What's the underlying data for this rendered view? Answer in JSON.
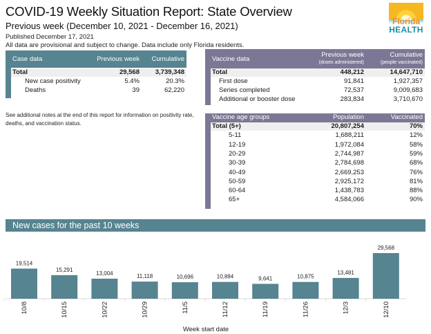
{
  "header": {
    "title": "COVID-19 Weekly Situation Report: State Overview",
    "subtitle": "Previous week (December 10, 2021 - December 16, 2021)",
    "published": "Published December 17, 2021",
    "disclaimer": "All data are provisional and subject to change. Data include only Florida residents."
  },
  "logo": {
    "line1": "Florida",
    "line2": "HEALTH"
  },
  "case_table": {
    "headers": [
      "Case data",
      "Previous week",
      "Cumulative"
    ],
    "rows": [
      {
        "label": "Total",
        "week": "29,568",
        "cumulative": "3,739,348"
      },
      {
        "label": "New case positivity",
        "week": "5.4%",
        "cumulative": "20.3%"
      },
      {
        "label": "Deaths",
        "week": "39",
        "cumulative": "62,220"
      }
    ]
  },
  "note": "See additional notes at the end of this report for information on positivity rate, deaths, and vaccination status.",
  "vaccine_table": {
    "headers": [
      "Vaccine data",
      "Previous week",
      "Cumulative"
    ],
    "subheaders": [
      "(doses administered)",
      "(people vaccinated)"
    ],
    "rows": [
      {
        "label": "Total",
        "week": "448,212",
        "cumulative": "14,647,710"
      },
      {
        "label": "First dose",
        "week": "91,841",
        "cumulative": "1,927,357"
      },
      {
        "label": "Series completed",
        "week": "72,537",
        "cumulative": "9,009,683"
      },
      {
        "label": "Additional or booster dose",
        "week": "283,834",
        "cumulative": "3,710,670"
      }
    ]
  },
  "age_table": {
    "headers": [
      "Vaccine age groups",
      "Population",
      "Vaccinated"
    ],
    "rows": [
      {
        "label": "Total (5+)",
        "population": "20,807,254",
        "vaccinated": "70%"
      },
      {
        "label": "5-11",
        "population": "1,688,211",
        "vaccinated": "12%"
      },
      {
        "label": "12-19",
        "population": "1,972,084",
        "vaccinated": "58%"
      },
      {
        "label": "20-29",
        "population": "2,744,987",
        "vaccinated": "59%"
      },
      {
        "label": "30-39",
        "population": "2,784,698",
        "vaccinated": "68%"
      },
      {
        "label": "40-49",
        "population": "2,669,253",
        "vaccinated": "76%"
      },
      {
        "label": "50-59",
        "population": "2,925,172",
        "vaccinated": "81%"
      },
      {
        "label": "60-64",
        "population": "1,438,783",
        "vaccinated": "88%"
      },
      {
        "label": "65+",
        "population": "4,584,066",
        "vaccinated": "90%"
      }
    ]
  },
  "colors": {
    "teal": "#568490",
    "purple": "#7c7795",
    "total_row": "#efefef"
  },
  "chart_data": {
    "type": "bar",
    "title": "New cases for the past 10 weeks",
    "xlabel": "Week start date",
    "ylabel": "",
    "categories": [
      "10/8",
      "10/15",
      "10/22",
      "10/29",
      "11/5",
      "11/12",
      "11/19",
      "11/26",
      "12/3",
      "12/10"
    ],
    "values": [
      19514,
      15291,
      13004,
      11118,
      10696,
      10884,
      9641,
      10875,
      13481,
      29568
    ],
    "labels": [
      "19,514",
      "15,291",
      "13,004",
      "11,118",
      "10,696",
      "10,884",
      "9,641",
      "10,875",
      "13,481",
      "29,568"
    ],
    "ylim": [
      0,
      29568
    ],
    "grid": false,
    "legend": "none",
    "bar_color": "#568490"
  }
}
